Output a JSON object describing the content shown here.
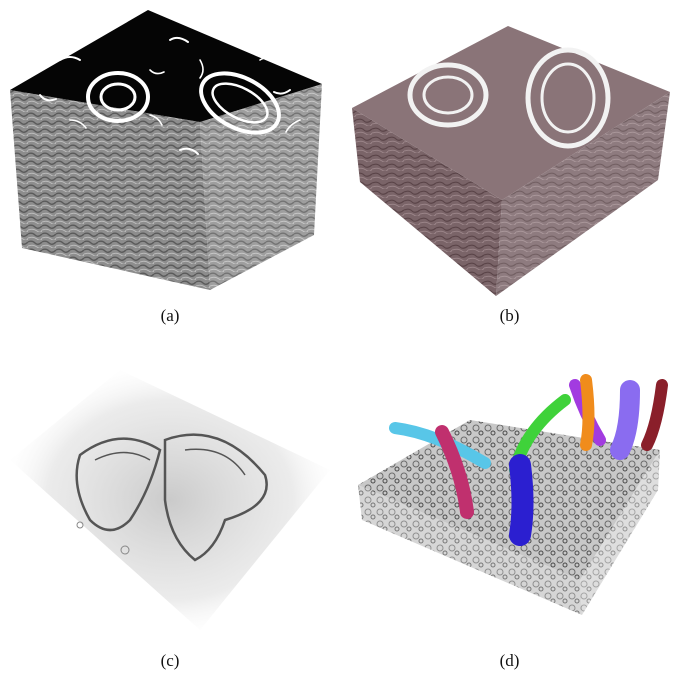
{
  "panels": [
    {
      "id": "a",
      "caption": "(a)"
    },
    {
      "id": "b",
      "caption": "(b)"
    },
    {
      "id": "c",
      "caption": "(c)"
    },
    {
      "id": "d",
      "caption": "(d)"
    }
  ],
  "colors": {
    "block_side_gray": "#8a8a8a",
    "top_black": "#050505",
    "tinted_volume": "#7a6468",
    "segment_cyan": "#58c6e8",
    "segment_magenta": "#c0306e",
    "segment_green": "#3fd23a",
    "segment_blue": "#2b1fd0",
    "segment_purple": "#a23be0",
    "segment_orange": "#f08c1c",
    "segment_violet": "#8a6cf0",
    "segment_maroon": "#8a1f2a"
  }
}
